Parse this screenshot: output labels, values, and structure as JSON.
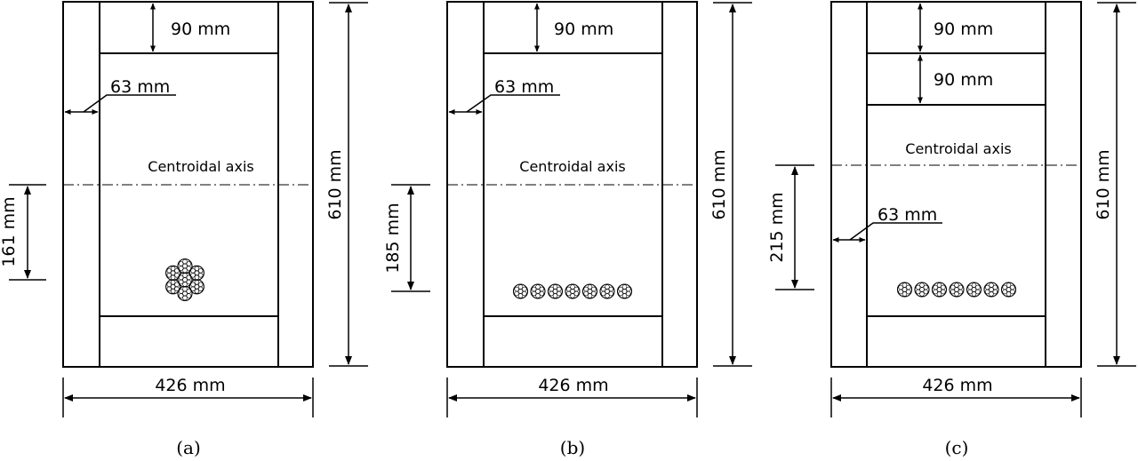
{
  "panels": [
    {
      "id": "a",
      "caption": "(a)",
      "width_label": "426 mm",
      "height_label": "610 mm",
      "flange_labels": [
        "90 mm"
      ],
      "web_label": "63 mm",
      "centroid_label": "Centroidal axis",
      "eccentricity_label": "161 mm",
      "tendon_layout": "cluster",
      "strand_count": 7
    },
    {
      "id": "b",
      "caption": "(b)",
      "width_label": "426 mm",
      "height_label": "610 mm",
      "flange_labels": [
        "90 mm"
      ],
      "web_label": "63 mm",
      "centroid_label": "Centroidal axis",
      "eccentricity_label": "185 mm",
      "tendon_layout": "row",
      "strand_count": 7
    },
    {
      "id": "c",
      "caption": "(c)",
      "width_label": "426 mm",
      "height_label": "610 mm",
      "flange_labels": [
        "90 mm",
        "90 mm"
      ],
      "web_label": "63 mm",
      "centroid_label": "Centroidal axis",
      "eccentricity_label": "215 mm",
      "tendon_layout": "row",
      "strand_count": 7
    }
  ]
}
